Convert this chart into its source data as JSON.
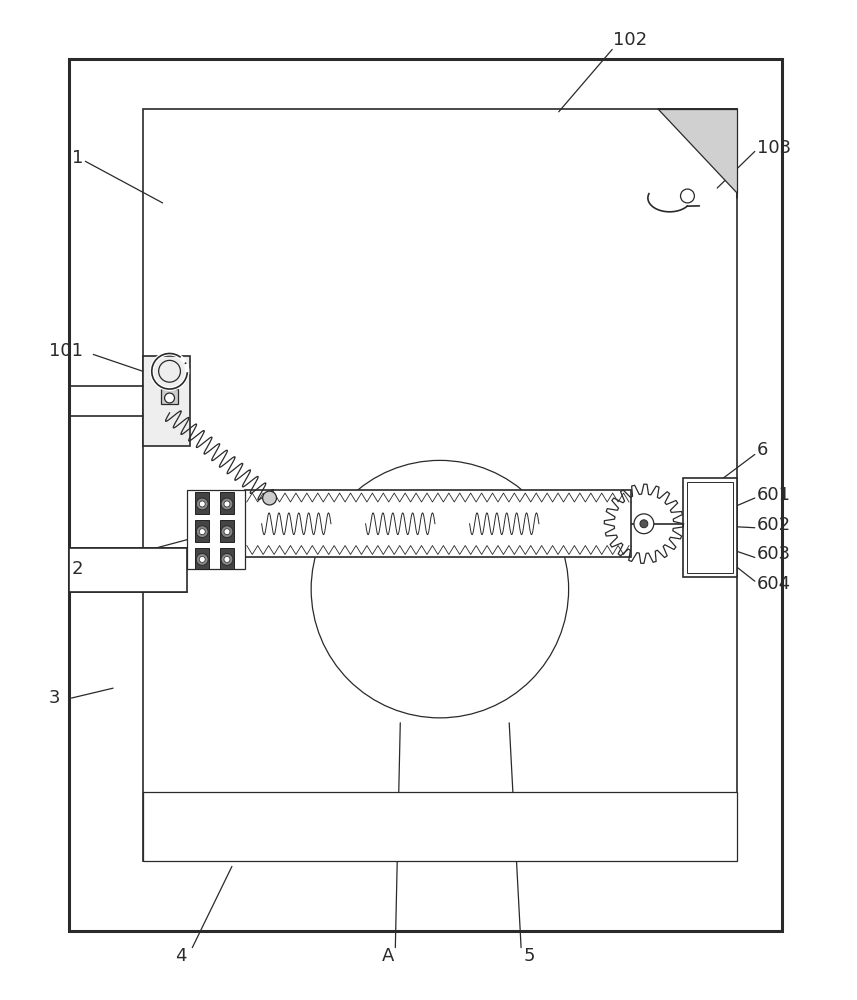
{
  "bg_color": "#ffffff",
  "lc": "#2a2a2a",
  "lw_main": 1.8,
  "lw_thin": 0.9,
  "lw_med": 1.2,
  "fontsize": 13,
  "figw": 8.57,
  "figh": 10.0,
  "dpi": 100
}
